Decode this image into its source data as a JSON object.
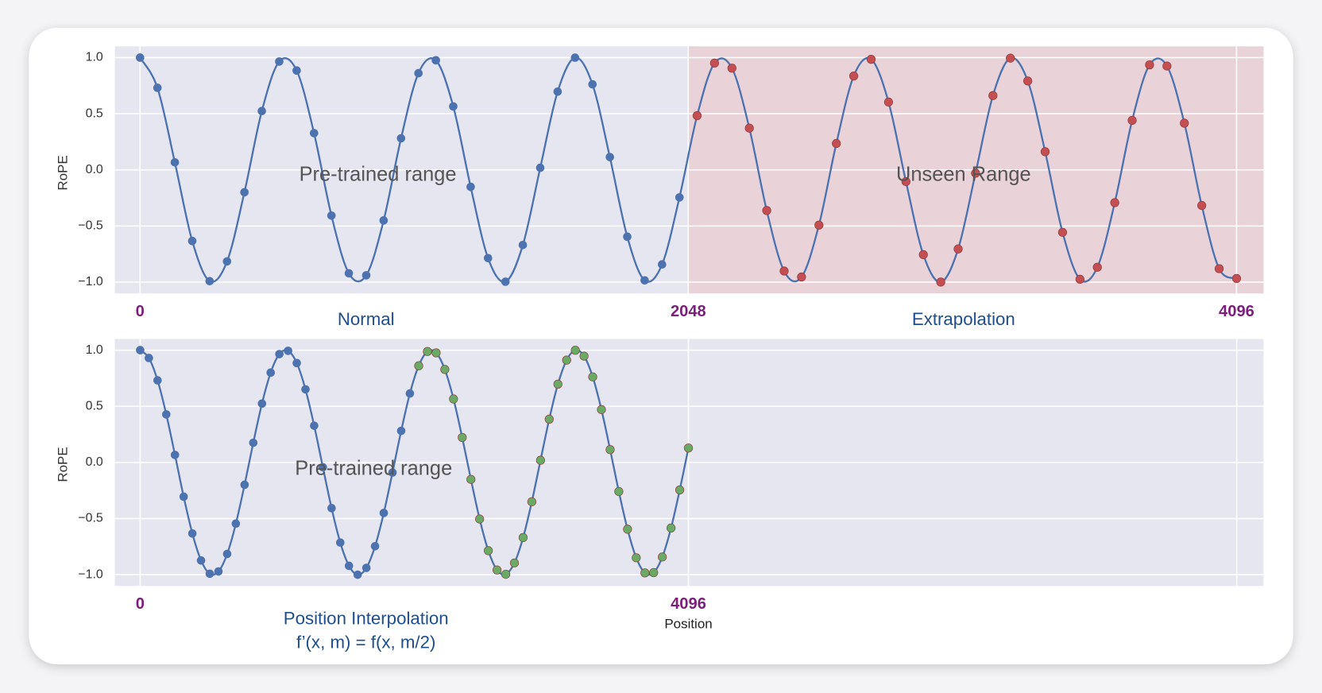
{
  "chart_data": [
    {
      "type": "line",
      "ylabel": "RoPE",
      "x": [
        0,
        65,
        130,
        195,
        260,
        325,
        390,
        455,
        520,
        585,
        650,
        715,
        780,
        845,
        910,
        975,
        1040,
        1105,
        1170,
        1235,
        1300,
        1365,
        1430,
        1495,
        1560,
        1625,
        1690,
        1755,
        1820,
        1885,
        1950,
        2015,
        2081,
        2146,
        2211,
        2276,
        2341,
        2406,
        2471,
        2536,
        2601,
        2666,
        2731,
        2796,
        2861,
        2926,
        2991,
        3056,
        3121,
        3186,
        3251,
        3316,
        3381,
        3446,
        3511,
        3576,
        3641,
        3706,
        3771,
        3836,
        3901,
        3966,
        4031,
        4096
      ],
      "series": [
        {
          "color": "#4c72b0",
          "values": [
            1.0,
            0.731,
            0.067,
            -0.633,
            -0.991,
            -0.815,
            -0.199,
            0.524,
            0.965,
            0.885,
            0.327,
            -0.407,
            -0.921,
            -0.939,
            -0.45,
            0.281,
            0.861,
            0.976,
            0.565,
            -0.151,
            -0.786,
            -0.996,
            -0.669,
            0.019,
            0.697,
            0.999,
            0.762,
            0.114,
            -0.595,
            -0.984,
            -0.842,
            -0.245,
            0.483,
            0.951,
            0.906,
            0.372,
            -0.362,
            -0.901,
            -0.954,
            -0.492,
            0.235,
            0.836,
            0.985,
            0.604,
            -0.104,
            -0.755,
            -0.999,
            -0.704,
            -0.029,
            0.662,
            0.995,
            0.792,
            0.162,
            -0.556,
            -0.974,
            -0.867,
            -0.292,
            0.441,
            0.935,
            0.925,
            0.416,
            -0.317,
            -0.88,
            -0.967
          ]
        }
      ],
      "split_x": 2048,
      "split_color": "#c44e52",
      "shade": {
        "from": 2048,
        "color": "#e9d3d8"
      },
      "xlim": [
        -94,
        4197
      ],
      "ylim": [
        -1.1,
        1.1
      ],
      "xticks": [
        0,
        2048,
        4096
      ],
      "xgrid": [
        0,
        2048,
        4096
      ],
      "yticks": [
        {
          "value": -1,
          "label": "−1.0"
        },
        {
          "value": -0.5,
          "label": "−0.5"
        },
        {
          "value": 0,
          "label": "0.0"
        },
        {
          "value": 0.5,
          "label": "0.5"
        },
        {
          "value": 1,
          "label": "1.0"
        }
      ],
      "grid": true,
      "annotations": [
        "Pre-trained range",
        "Unseen Range",
        "Normal",
        "Extrapolation"
      ]
    },
    {
      "type": "line",
      "ylabel": "RoPE",
      "xlabel": "Position",
      "x": [
        0,
        65,
        130,
        195,
        260,
        325,
        390,
        455,
        520,
        585,
        650,
        715,
        780,
        845,
        910,
        975,
        1040,
        1105,
        1170,
        1235,
        1300,
        1365,
        1430,
        1495,
        1560,
        1625,
        1690,
        1755,
        1820,
        1885,
        1950,
        2015,
        2081,
        2146,
        2211,
        2276,
        2341,
        2406,
        2471,
        2536,
        2601,
        2666,
        2731,
        2796,
        2861,
        2926,
        2991,
        3056,
        3121,
        3186,
        3251,
        3316,
        3381,
        3446,
        3511,
        3576,
        3641,
        3706,
        3771,
        3836,
        3901,
        3966,
        4031,
        4096
      ],
      "series": [
        {
          "color": "#4c72b0",
          "values": [
            1.0,
            0.93,
            0.731,
            0.428,
            0.067,
            -0.305,
            -0.633,
            -0.873,
            -0.991,
            -0.971,
            -0.815,
            -0.545,
            -0.199,
            0.175,
            0.524,
            0.8,
            0.965,
            0.994,
            0.885,
            0.651,
            0.327,
            -0.043,
            -0.407,
            -0.714,
            -0.921,
            -1.0,
            -0.939,
            -0.746,
            -0.45,
            -0.09,
            0.281,
            0.614,
            0.861,
            0.988,
            0.976,
            0.828,
            0.565,
            0.222,
            -0.151,
            -0.504,
            -0.786,
            -0.958,
            -0.996,
            -0.895,
            -0.669,
            -0.35,
            0.019,
            0.385,
            0.697,
            0.911,
            0.999,
            0.947,
            0.762,
            0.471,
            0.114,
            -0.259,
            -0.595,
            -0.849,
            -0.984,
            -0.981,
            -0.842,
            -0.584,
            -0.245,
            0.128
          ]
        }
      ],
      "split_x": 2048,
      "split_color": "#6aaa64",
      "xlim": [
        -189,
        8393
      ],
      "ylim": [
        -1.1,
        1.1
      ],
      "xticks": [
        0,
        4096
      ],
      "xgrid": [
        0,
        4096,
        8192
      ],
      "yticks": [
        {
          "value": -1,
          "label": "−1.0"
        },
        {
          "value": -0.5,
          "label": "−0.5"
        },
        {
          "value": 0,
          "label": "0.0"
        },
        {
          "value": 0.5,
          "label": "0.5"
        },
        {
          "value": 1,
          "label": "1.0"
        }
      ],
      "grid": true,
      "annotations": [
        "Pre-trained range",
        "Position Interpolation",
        "f’(x, m) = f(x, m/2)"
      ]
    }
  ]
}
